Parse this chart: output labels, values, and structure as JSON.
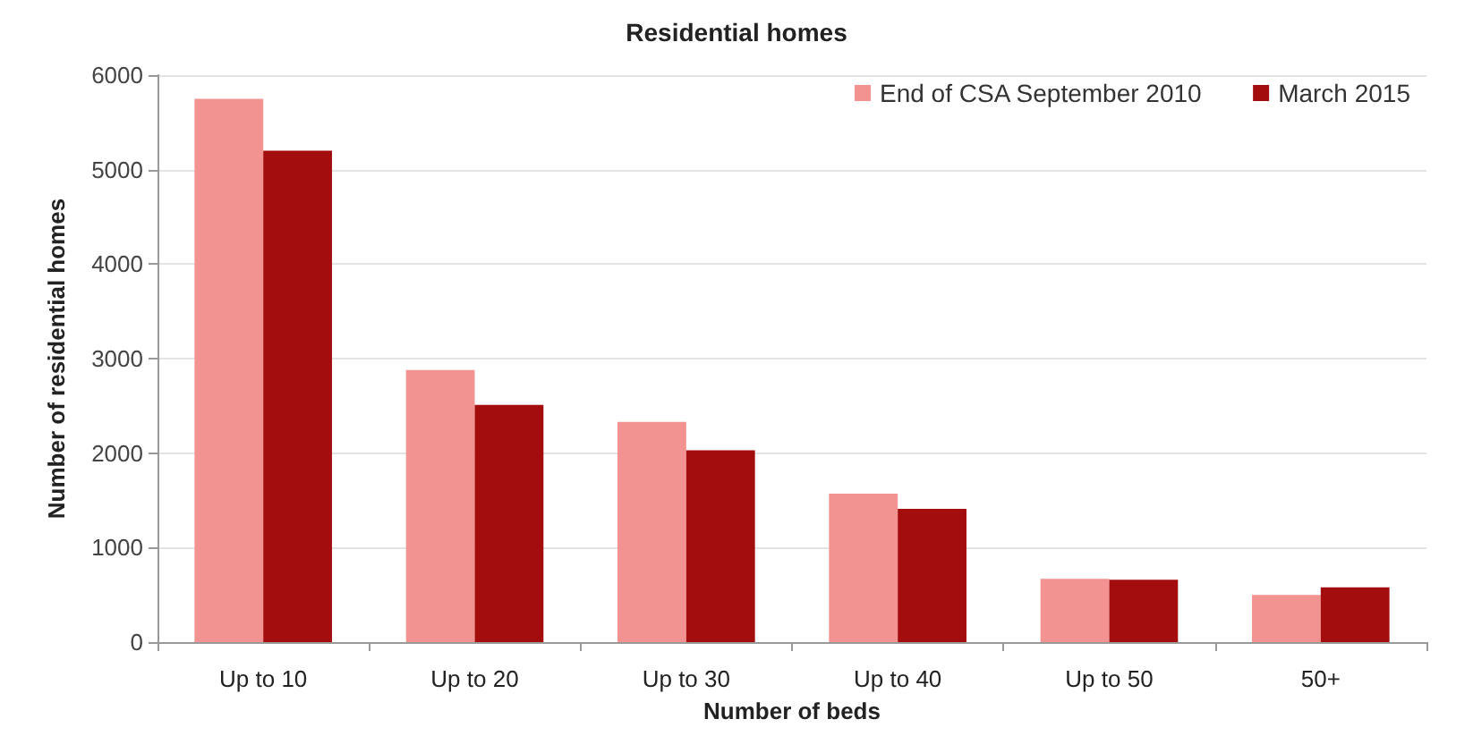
{
  "chart_data": {
    "type": "bar",
    "title": "Residential homes",
    "xlabel": "Number of beds",
    "ylabel": "Number of residential homes",
    "categories": [
      "Up to 10",
      "Up to 20",
      "Up to 30",
      "Up to 40",
      "Up to 50",
      "50+"
    ],
    "series": [
      {
        "name": "End of CSA September 2010",
        "color": "#f39391",
        "values": [
          5750,
          2880,
          2330,
          1570,
          670,
          500
        ]
      },
      {
        "name": "March 2015",
        "color": "#a30d0e",
        "values": [
          5200,
          2510,
          2030,
          1410,
          660,
          580
        ]
      }
    ],
    "ylim": [
      0,
      6000
    ],
    "yticks": [
      0,
      1000,
      2000,
      3000,
      4000,
      5000,
      6000
    ],
    "grid": "y",
    "legend": "top right"
  }
}
